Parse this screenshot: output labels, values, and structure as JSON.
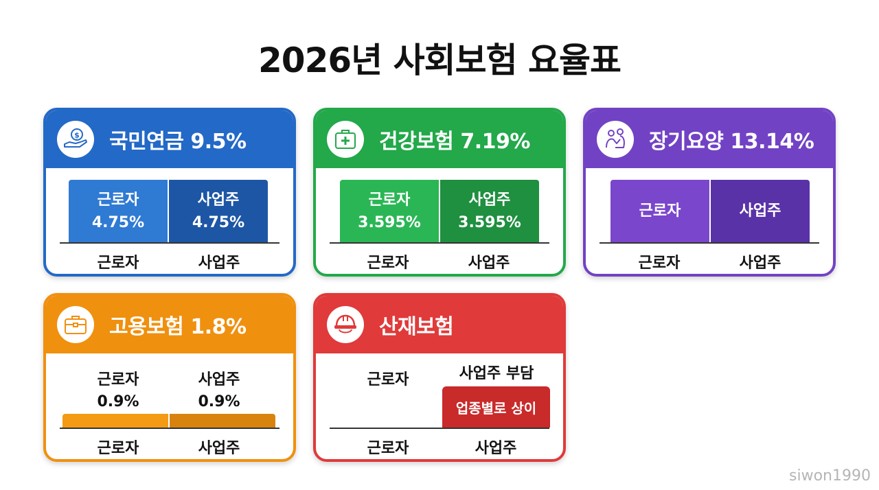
{
  "title": "2026년 사회보험 요율표",
  "watermark": "siwon1990",
  "labels": {
    "worker": "근로자",
    "employer": "사업주"
  },
  "cards": {
    "pension": {
      "title": "국민연금 9.5%",
      "icon": "money-hand-icon",
      "color": "#2369c7",
      "bar_left_color": "#2f7ad3",
      "bar_right_color": "#1d56a5",
      "worker_value": "4.75%",
      "employer_value": "4.75%"
    },
    "health": {
      "title": "건강보험 7.19%",
      "icon": "medical-kit-icon",
      "color": "#23a84a",
      "bar_left_color": "#2bb655",
      "bar_right_color": "#1f8f40",
      "worker_value": "3.595%",
      "employer_value": "3.595%"
    },
    "longterm": {
      "title": "장기요양 13.14%",
      "icon": "caregiver-icon",
      "color": "#7242c4",
      "bar_left_color": "#7a46cc",
      "bar_right_color": "#5932a8"
    },
    "employment": {
      "title": "고용보험 1.8%",
      "icon": "briefcase-icon",
      "color": "#f0900f",
      "bar_left_color": "#f59a14",
      "bar_right_color": "#d9830f",
      "worker_value": "0.9%",
      "employer_value": "0.9%"
    },
    "industrial": {
      "title": "산재보험",
      "icon": "hard-hat-icon",
      "color": "#e03a3a",
      "employer_note": "사업주 부담",
      "badge_text": "업종별로 상이",
      "badge_color": "#c92a2a"
    }
  }
}
